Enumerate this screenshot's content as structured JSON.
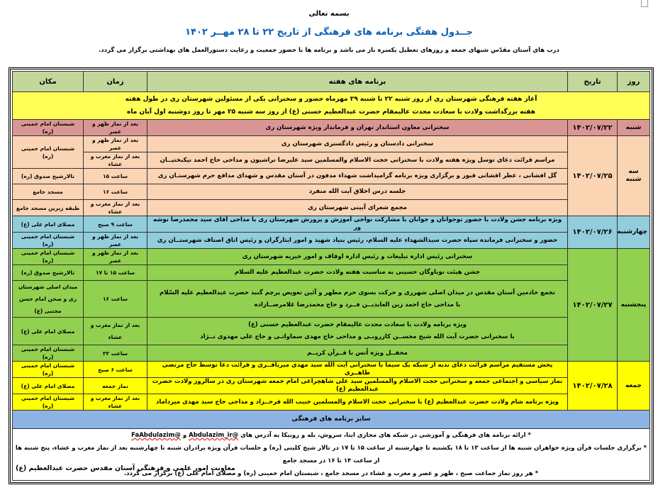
{
  "heading": {
    "bismillah": "بسمه تعالی",
    "title": "جــدول هفتگی برنامه های فرهنگی از تاریخ ۲۲ تا ۲۸ مهــر ۱۴۰۲",
    "intro": "درب های آستان مقدّس شبهای جمعه و روزهای تعطیل یکسره باز می باشد و برنامه ها با حضور جمعیت و رعایت دستورالعمل های بهداشتی برگزار می گردد."
  },
  "table": {
    "headers": {
      "day": "روز",
      "date": "تاریخ",
      "program": "برنامه های هفته",
      "time": "زمان",
      "place": "مکان"
    },
    "banner": [
      "آغاز هفته فرهنگی شهرستان ری از روز شنبه ۲۲ تا شنبه ۲۹ مهرماه  حضور و سخنرانی یکی از مسئولین شهرستان ری در طول هفته",
      "هفته بزرگداشت ولادت با سعادت محدث عالیمقام حضرت عبدالعظیم حسنی (ع) از روز سه شنبه ۲۵ مهر تا روز دوشنبه اول آبان ماه"
    ],
    "days": [
      {
        "day": "شنبه",
        "date": "۱۴۰۲/۰۷/۲۲",
        "color": "#d99694",
        "rows": [
          {
            "program": [
              "سخنرانی معاون استاندار تهران و فرماندار ویژه شهرستان ری"
            ],
            "time": "بعد از نماز ظهر و عصر",
            "place": "شبستان امام خمینی (ره)"
          }
        ]
      },
      {
        "day": "سه شنبه",
        "date": "۱۴۰۲/۰۷/۲۵",
        "color": "#fbd4b4",
        "rows": [
          {
            "program": [
              "سخنرانی دادستان و رئیس دادگستری شهرستان ری"
            ],
            "time": "بعد از نماز ظهر و عصر",
            "place": "شبستان امام خمینی (ره)",
            "place_span": 2
          },
          {
            "program": [
              "مراسم قرائت دعای توسل ویژه هفته ولادت با سخنرانی حجت الاسلام والمسلمین سید علیرضا تراشیون و مداحی حاج احمد نیکبختیــان"
            ],
            "time": "بعد از نماز مغرب و عشاء"
          },
          {
            "program": [
              "گل افشانی ، عطر افشانی قبور و برگزاری ویژه برنامه گرامیداشت شهداء مدفون در آستان مقدس و شهدای مدافع حرم شهرستـان ری"
            ],
            "time": "ساعت ۱۵",
            "place": "تالارشیخ صدوق (ره)"
          },
          {
            "program": [
              "جلسه درس اخلاق آیت الله منفرد"
            ],
            "time": "ساعت ۱۶",
            "place": "مسجد جامع"
          },
          {
            "program": [
              "مجمع شعرای آیینی شهرستان ری"
            ],
            "time": "بعد از نماز مغرب و عشاء",
            "place": "طبقه زیرین مسجد جامع"
          }
        ]
      },
      {
        "day": "چهارشنبه",
        "date": "۱۴۰۲/۰۷/۲۶",
        "color": "#92cddc",
        "rows": [
          {
            "program": [
              "ویژه برنامه جشن ولادت با حضور نوجوانان و جوانان با مشارکت نواحی آموزش و پرورش شهرستان ری با مداحی آقای سید محمدرضا نوشه ور"
            ],
            "time": "ساعت ۹ صبح",
            "place": "مصلای امام علی (ع)"
          },
          {
            "program": [
              "حضور و سخنرانی فرمانده سپاه حضرت سیدالشهداء علیه السلام، رئیس بنیاد شهید و امور ایثارگران و رئیس اتاق اصناف شهرستــان ری"
            ],
            "time": "بعد از نماز ظهر و عصر",
            "place": "شبستان امام خمینی (ره)"
          }
        ]
      },
      {
        "day": "پنجشنبه",
        "date": "۱۴۰۲/۰۷/۲۷",
        "color": "#92d050",
        "rows": [
          {
            "program": [
              "سخنرانی رئیس اداره تبلیغات و رئیس اداره اوقاف و امور خیریه شهرستان ری"
            ],
            "time": "بعد از نماز ظهر و عصر",
            "place": "شبستان امام خمینی (ره)"
          },
          {
            "program": [
              "جشن هیئت نوباوگان حسینی به مناسبت هفته ولادت حضرت عبدالعظیم علیه السلام"
            ],
            "time": "ساعت ۱۵ تا ۱۷",
            "place": "تالارشیخ صدوق (ره)"
          },
          {
            "program": [
              "تجمع خادمین آستان مقدس در میدان اصلی شهرری و حرکت بسوی حرم مطهر و آئین تعویض پرچم گنبد حضرت عبدالعظیم علیه السّلام",
              "با مداحی حاج احمد زین العابدیــن فــرد و حاج محمدرضا غلامرضــازاده"
            ],
            "time": "ساعت ۱۶",
            "place": "میدان اصلی شهرستان ری و صحن امام حسن مجتبی (ع)"
          },
          {
            "program": [
              "ویژه برنامه ولادت با سعادت محدث عالیمقام حضرت عبدالعظیم حسنی (ع)",
              "با سخنرانی حضرت آیت الله شیخ محســن کازرونـی و مداحی حاج مهدی سماواتـی و  حاج علی مهدوی نــژاد"
            ],
            "time": "بعد از نماز مغرب و عشاء",
            "place": "مصلای امام علی (ع)"
          },
          {
            "program": [
              "محفــل ویژه اُنس با قــرآن کریــم"
            ],
            "time": "ساعت ۲۲",
            "place": "شبستان امام خمینی (ره)"
          }
        ]
      },
      {
        "day": "جمعه",
        "date": "۱۴۰۲/۰۷/۲۸",
        "color": "#ffff00",
        "rows": [
          {
            "program": [
              "پخش مستقیم مراسم قرائت دعای ندبه از شبکه یک سیما با سخنرانی آیت الله سید مهدی میرباقــری و قرائت دعا توسط حاج مرتضی طاهــری"
            ],
            "time": "ساعت ۶ صبح",
            "place": "شبستان امام خمینی (ره)"
          },
          {
            "program": [
              "نماز سیاسی و اجتماعی جمعه و سخنرانی حجت الاسلام والمسلمین سید علی شاهچراغی  امام جمعه شهرستان ری در سالروز ولادت حضرت عبدالعظیم (ع)"
            ],
            "time": "نماز جمعه",
            "place": "مصلای امام علی (ع)"
          },
          {
            "program": [
              "ویژه برنامه شام ولادت حضرت عبدالعظیم (ع) با سخنرانی حجت الاسلام والمسلمین حبیب الله فرحــزاد و مداحی حاج سید مهدی میرداماد"
            ],
            "time": "بعد از نماز مغرب و عشاء",
            "place": "شبستان امام خمینی (ره)"
          }
        ]
      }
    ],
    "other_title": "سایر برنامه های فرهنگی",
    "notes": {
      "line1_text": "* ارائه برنامه های فرهنگی و آموزشی در شبکه های مجازی ایتا، سروش، بله و روبیکا به آدرس های",
      "link1": "@Abdulazim_ir",
      "and": "و",
      "link2": "@FaAbdulazim",
      "line2": "* برگزاری جلسات قرآن ویژه خواهران شنبه ها از ساعت ۱۳ تا ۱۸ یکشنبه تا چهارشنبه از ساعت ۱۵ تا ۱۷ در تالار شیخ کلینی (ره) و جلسات قرآن ویژه برادران شنبه تا چهارشنبه بعد از نماز مغرب و عشاء، پنج شنبه ها از ساعت ۱۴ تا ۱۶ در مسجد جامع",
      "line3": "* هر روز نماز جماعت صبح ، ظهر و عصر و مغرب و عشاء در مسجد جامع ، شبستان امام خمینی (ره) و مصلای امام علی (ع) برگزار می گردد."
    }
  },
  "footer": "معاونت امور علمی و فرهنگی آستان مقدس حضرت عبدالعظیم (ع)"
}
